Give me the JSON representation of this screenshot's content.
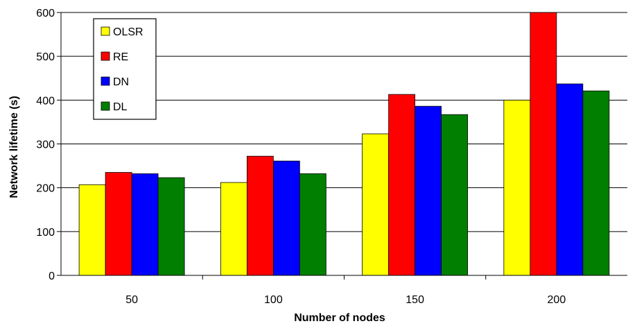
{
  "chart_data": {
    "type": "bar",
    "title": "",
    "xlabel": "Number of nodes",
    "ylabel": "Network lifetime (s)",
    "categories": [
      "50",
      "100",
      "150",
      "200"
    ],
    "ylim": [
      0,
      600
    ],
    "yticks": [
      0,
      100,
      200,
      300,
      400,
      500,
      600
    ],
    "grid": true,
    "legend_position": "top-left",
    "series": [
      {
        "name": "OLSR",
        "color": "#ffff00",
        "values": [
          207,
          212,
          323,
          400
        ]
      },
      {
        "name": "RE",
        "color": "#ff0000",
        "values": [
          235,
          272,
          413,
          600
        ]
      },
      {
        "name": "DN",
        "color": "#0000ff",
        "values": [
          232,
          261,
          386,
          437
        ]
      },
      {
        "name": "DL",
        "color": "#007f00",
        "values": [
          223,
          232,
          367,
          421
        ]
      }
    ]
  }
}
